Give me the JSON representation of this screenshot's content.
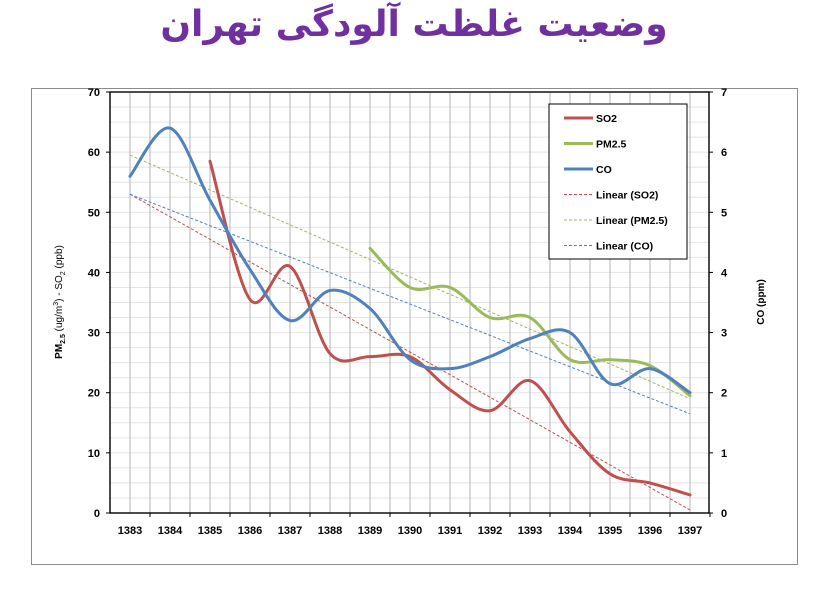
{
  "title": "وضعیت غلظت آلودگی تهران",
  "chart_data": {
    "type": "line",
    "title": "وضعیت غلظت آلودگی تهران",
    "x": [
      1383,
      1384,
      1385,
      1386,
      1387,
      1388,
      1389,
      1390,
      1391,
      1392,
      1393,
      1394,
      1395,
      1396,
      1397
    ],
    "xlabel": "",
    "ylabel": "PM2.5 (ug/m3) - SO2 (ppb)",
    "ylabel_right": "CO (ppm)",
    "ylim": [
      0,
      70
    ],
    "ylim_right": [
      0,
      7
    ],
    "yticks": [
      0,
      10,
      20,
      30,
      40,
      50,
      60,
      70
    ],
    "yticks_right": [
      0,
      1,
      2,
      3,
      4,
      5,
      6,
      7
    ],
    "grid": true,
    "legend_position": "upper right (inside)",
    "series": [
      {
        "name": "SO2",
        "axis": "left",
        "color": "#c0504d",
        "style": "solid",
        "values": [
          null,
          null,
          58.5,
          35.5,
          41,
          26.5,
          26,
          26,
          20.5,
          17,
          22,
          13.5,
          6.5,
          5,
          3
        ]
      },
      {
        "name": "PM2.5",
        "axis": "left",
        "color": "#9bbb59",
        "style": "solid",
        "values": [
          null,
          null,
          null,
          null,
          null,
          null,
          44,
          37.5,
          37.5,
          32.5,
          32.5,
          25.5,
          25.5,
          24.5,
          19.5
        ]
      },
      {
        "name": "CO",
        "axis": "right",
        "color": "#4f81bd",
        "style": "solid",
        "values": [
          5.6,
          6.4,
          5.2,
          4.05,
          3.2,
          3.7,
          3.4,
          2.55,
          2.4,
          2.6,
          2.9,
          3.0,
          2.15,
          2.4,
          2.0
        ]
      },
      {
        "name": "Linear (SO2)",
        "axis": "left",
        "color": "#c0504d",
        "style": "dashed",
        "endpoints": [
          [
            1383,
            53
          ],
          [
            1397,
            0.5
          ]
        ]
      },
      {
        "name": "Linear (PM2.5)",
        "axis": "left",
        "color": "#9bbb59",
        "style": "dashed",
        "endpoints": [
          [
            1383,
            59.5
          ],
          [
            1397,
            19
          ]
        ]
      },
      {
        "name": "Linear (CO)",
        "axis": "right",
        "color": "#4f81bd",
        "style": "dashed",
        "endpoints": [
          [
            1383,
            5.3
          ],
          [
            1397,
            1.65
          ]
        ]
      }
    ]
  },
  "axes": {
    "left_title_main": "PM",
    "left_title_sub1": "2.5",
    "left_title_mid": " (ug/m",
    "left_title_sup": "3",
    "left_title_mid2": ") - SO",
    "left_title_sub2": "2",
    "left_title_end": " (ppb)",
    "right_title": "CO (ppm)"
  },
  "legend": {
    "items": [
      {
        "label": "SO2",
        "color": "#c0504d",
        "style": "solid"
      },
      {
        "label": "PM2.5",
        "color": "#9bbb59",
        "style": "solid"
      },
      {
        "label": "CO",
        "color": "#4f81bd",
        "style": "solid"
      },
      {
        "label": "Linear (SO2)",
        "color": "#c0504d",
        "style": "dashed"
      },
      {
        "label": "Linear (PM2.5)",
        "color": "#9bbb59",
        "style": "dashed"
      },
      {
        "label": "Linear (CO)",
        "color": "#4f81bd",
        "style": "dashed"
      }
    ]
  },
  "colors": {
    "title": "#7030a0",
    "so2": "#c0504d",
    "pm25": "#9bbb59",
    "co": "#4f81bd"
  }
}
